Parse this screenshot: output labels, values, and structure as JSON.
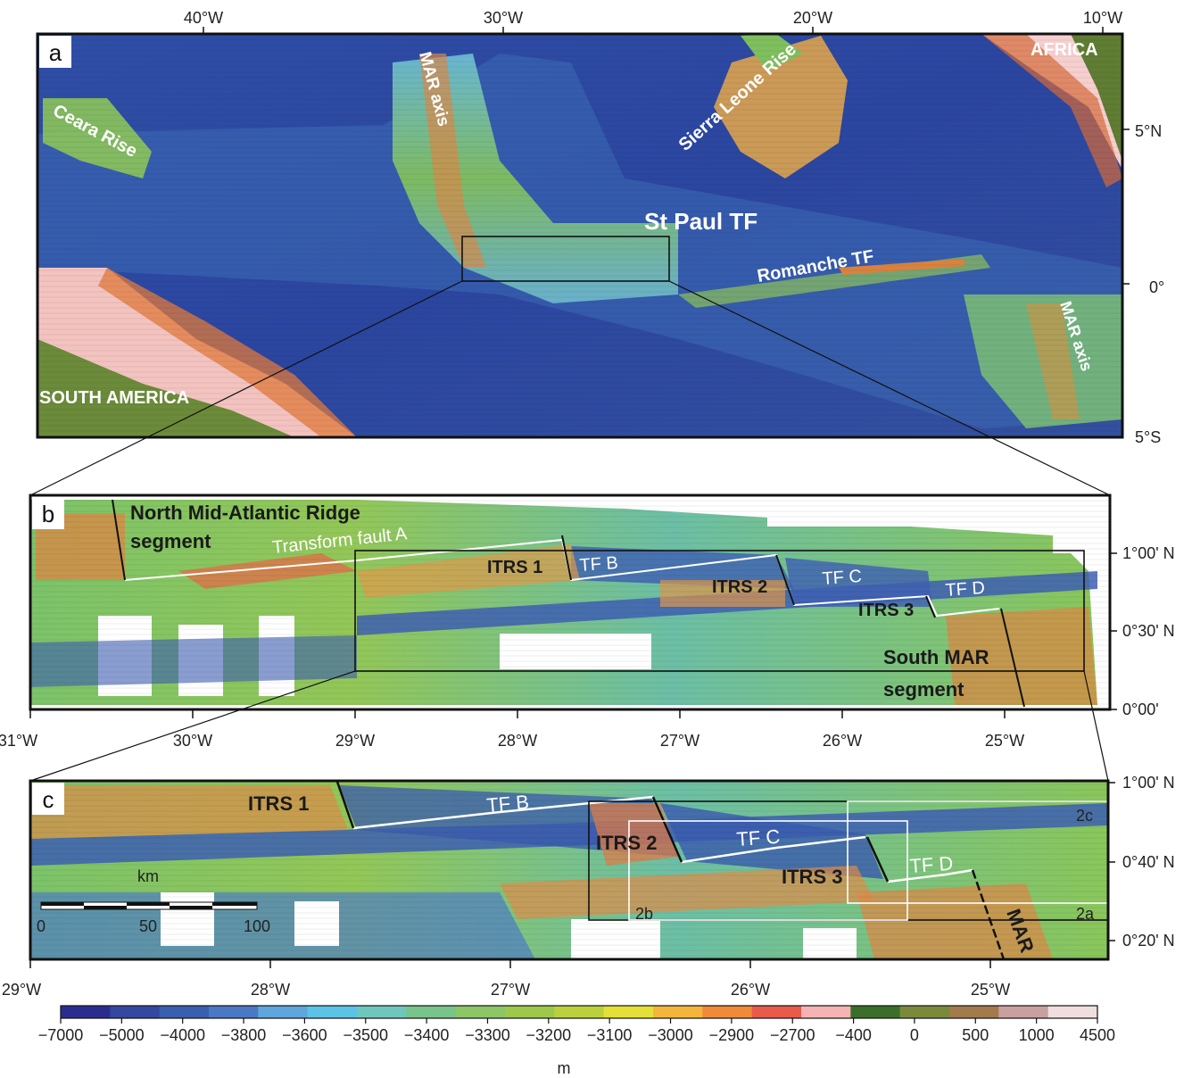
{
  "panel_a": {
    "panel_label": "a",
    "top_ticks": [
      "40°W",
      "30°W",
      "20°W",
      "10°W"
    ],
    "right_ticks": [
      "5°N",
      "0°",
      "5°S"
    ],
    "labels": {
      "ceara_rise": "Ceara Rise",
      "mar_axis_north": "MAR axis",
      "sierra_leone_rise": "Sierra Leone Rise",
      "africa": "AFRICA",
      "st_paul_tf": "St Paul TF",
      "romanche_tf": "Romanche TF",
      "mar_axis_south": "MAR axis",
      "south_america": "SOUTH AMERICA"
    }
  },
  "panel_b": {
    "panel_label": "b",
    "bottom_ticks": [
      "31°W",
      "30°W",
      "29°W",
      "28°W",
      "27°W",
      "26°W",
      "25°W"
    ],
    "right_ticks": [
      "1°00' N",
      "0°30' N",
      "0°00'"
    ],
    "labels": {
      "north_segment_1": "North Mid-Atlantic Ridge",
      "north_segment_2": "segment",
      "transform_fault_a": "Transform fault A",
      "itrs1": "ITRS 1",
      "tf_b": "TF B",
      "itrs2": "ITRS 2",
      "tf_c": "TF C",
      "itrs3": "ITRS 3",
      "tf_d": "TF D",
      "south_segment_1": "South MAR",
      "south_segment_2": "segment"
    }
  },
  "panel_c": {
    "panel_label": "c",
    "bottom_ticks": [
      "29°W",
      "28°W",
      "27°W",
      "26°W",
      "25°W"
    ],
    "right_ticks": [
      "1°00' N",
      "0°40' N",
      "0°20' N"
    ],
    "labels": {
      "itrs1": "ITRS 1",
      "tf_b": "TF B",
      "itrs2": "ITRS 2",
      "tf_c": "TF C",
      "itrs3": "ITRS 3",
      "tf_d": "TF D",
      "mar": "MAR",
      "box_2a": "2a",
      "box_2b": "2b",
      "box_2c": "2c"
    },
    "scale_bar": {
      "unit": "km",
      "ticks": [
        "0",
        "50",
        "100"
      ]
    }
  },
  "colorbar": {
    "ticks": [
      "−7000",
      "−5000",
      "−4000",
      "−3800",
      "−3600",
      "−3500",
      "−3400",
      "−3300",
      "−3200",
      "−3100",
      "−3000",
      "−2900",
      "−2700",
      "−400",
      "0",
      "500",
      "1000",
      "4500"
    ],
    "colors": [
      "#2b2d8e",
      "#33489e",
      "#3a5fb0",
      "#4a78c4",
      "#5ea6dc",
      "#5bc3e6",
      "#6fc7bc",
      "#79c48a",
      "#8cc665",
      "#9ec84a",
      "#bcd03c",
      "#e4e038",
      "#f4b63a",
      "#ef8a3a",
      "#e85a4a",
      "#f5b3b3",
      "#3b6e2a",
      "#7b8a3a",
      "#a27a4c",
      "#c9a0a0",
      "#f0dede"
    ],
    "unit": "m"
  }
}
